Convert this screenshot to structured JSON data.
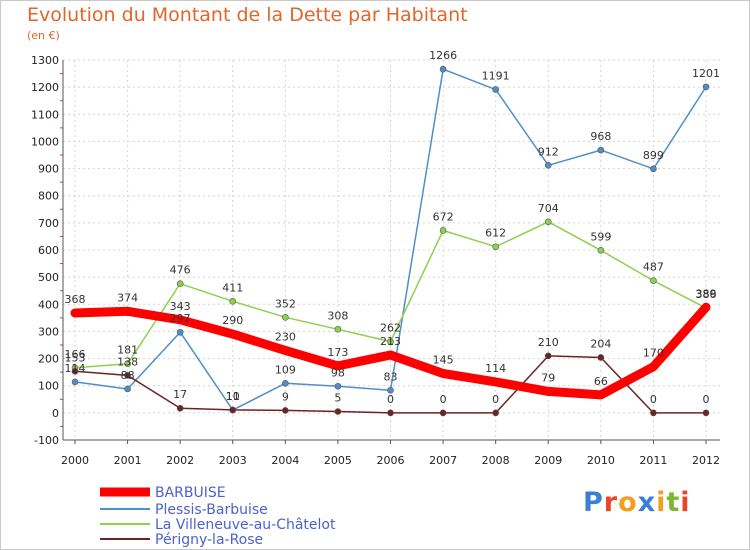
{
  "title": "Evolution du Montant de la Dette par Habitant",
  "subtitle": "(en €)",
  "logo": {
    "text": "Proxiti",
    "colors": [
      "#3a7fd5",
      "#e8452c",
      "#f0a020",
      "#3a7fd5",
      "#f0a020",
      "#7cb82f",
      "#e8452c"
    ]
  },
  "chart_data": {
    "type": "line",
    "x": [
      2000,
      2001,
      2002,
      2003,
      2004,
      2005,
      2006,
      2007,
      2008,
      2009,
      2010,
      2011,
      2012
    ],
    "ylim": [
      -100,
      1300
    ],
    "yticks": [
      -100,
      0,
      100,
      200,
      300,
      400,
      500,
      600,
      700,
      800,
      900,
      1000,
      1100,
      1200,
      1300
    ],
    "grid": true,
    "legend_position": "bottom-left",
    "series": [
      {
        "name": "BARBUISE",
        "color": "#ff0000",
        "values": [
          368,
          374,
          343,
          290,
          230,
          173,
          213,
          145,
          114,
          79,
          66,
          170,
          389
        ]
      },
      {
        "name": "Plessis-Barbuise",
        "color": "#4f8fc7",
        "values": [
          114,
          88,
          297,
          10,
          109,
          98,
          83,
          1266,
          1191,
          912,
          968,
          899,
          1201
        ]
      },
      {
        "name": "La Villeneuve-au-Châtelot",
        "color": "#8ed14b",
        "values": [
          166,
          181,
          476,
          411,
          352,
          308,
          262,
          672,
          612,
          704,
          599,
          487,
          386
        ]
      },
      {
        "name": "Périgny-la-Rose",
        "color": "#6b2323",
        "values": [
          153,
          138,
          17,
          11,
          9,
          5,
          0,
          0,
          0,
          210,
          204,
          0,
          0
        ]
      }
    ],
    "data_labels": [
      [
        "368",
        "374",
        "343",
        "290",
        "230",
        "173",
        "213",
        "145",
        "114",
        "79",
        "66",
        "170",
        "389"
      ],
      [
        "114",
        "88",
        "297",
        "10",
        "109",
        "98",
        "83",
        "1266",
        "1191",
        "912",
        "968",
        "899",
        "1201"
      ],
      [
        "166",
        "181",
        "476",
        "411",
        "352",
        "308",
        "262",
        "672",
        "612",
        "704",
        "599",
        "487",
        "386"
      ],
      [
        "153",
        "138",
        "17",
        "11",
        "9",
        "5",
        "0",
        "0",
        "0",
        "210",
        "204",
        "0",
        "0"
      ]
    ]
  }
}
